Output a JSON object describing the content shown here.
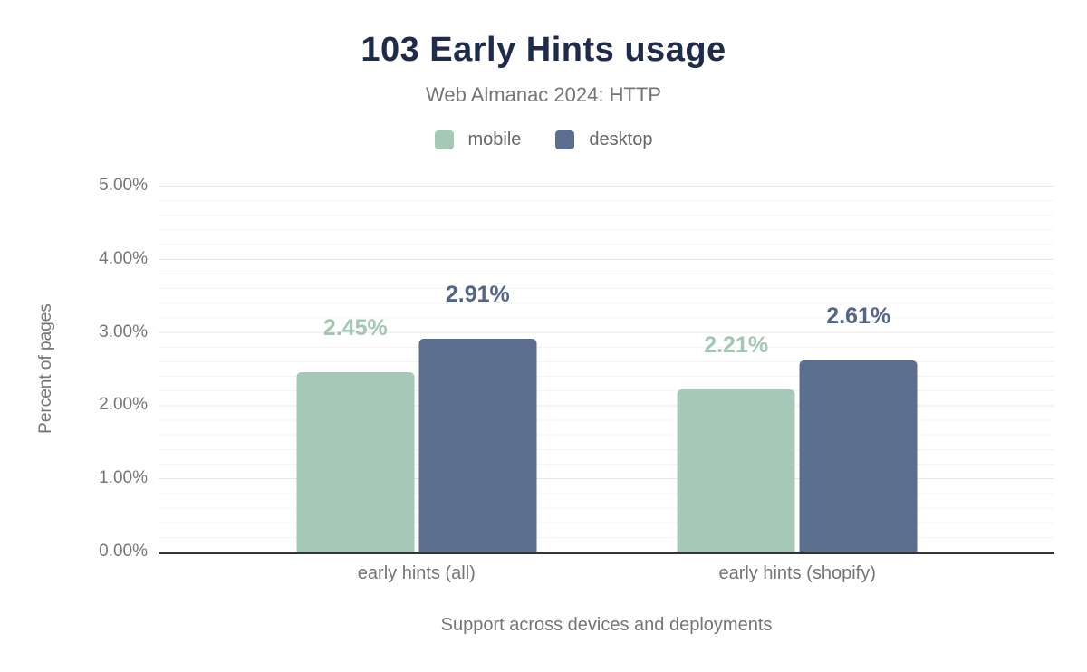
{
  "chart_data": {
    "type": "bar",
    "title": "103 Early Hints usage",
    "subtitle": "Web Almanac 2024: HTTP",
    "xlabel": "Support across devices and deployments",
    "ylabel": "Percent of pages",
    "categories": [
      "early hints (all)",
      "early hints (shopify)"
    ],
    "series": [
      {
        "name": "mobile",
        "color": "#a6c9b7",
        "label_color": "#a2c8b4",
        "values": [
          2.45,
          2.21
        ],
        "labels": [
          "2.45%",
          "2.21%"
        ]
      },
      {
        "name": "desktop",
        "color": "#5b6e8e",
        "label_color": "#52668b",
        "values": [
          2.91,
          2.61
        ],
        "labels": [
          "2.91%",
          "2.61%"
        ]
      }
    ],
    "ylim": [
      0,
      5
    ],
    "yticks": [
      "0.00%",
      "1.00%",
      "2.00%",
      "3.00%",
      "4.00%",
      "5.00%"
    ],
    "grid": "horizontal; major lines every 1%, minor lines every 0.2%",
    "legend_position": "top",
    "colors": {
      "title": "#1e2b4d",
      "axis_text": "#757575",
      "axis_line": "#333333",
      "gridline_major": "#e7e7e7",
      "gridline_minor": "#f4f4f4",
      "background": "#ffffff"
    }
  }
}
